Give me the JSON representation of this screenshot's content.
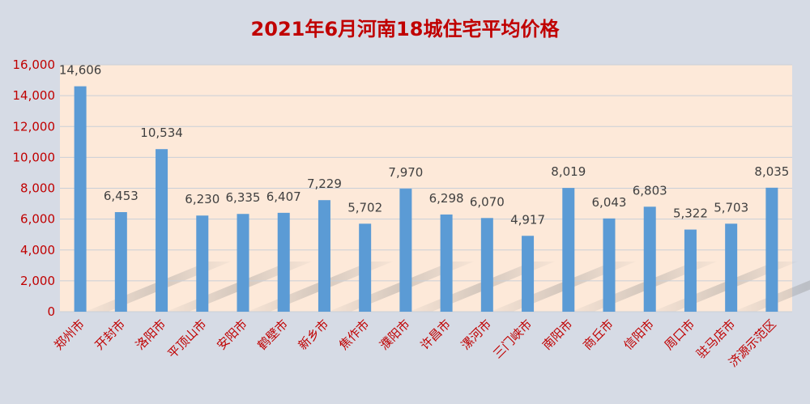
{
  "chart_data": {
    "type": "bar",
    "title": "2021年6月河南18城住宅平均价格",
    "categories": [
      "郑州市",
      "开封市",
      "洛阳市",
      "平顶山市",
      "安阳市",
      "鹤壁市",
      "新乡市",
      "焦作市",
      "濮阳市",
      "许昌市",
      "漯河市",
      "三门峡市",
      "南阳市",
      "商丘市",
      "信阳市",
      "周口市",
      "驻马店市",
      "济源示范区"
    ],
    "values": [
      14606,
      6453,
      10534,
      6230,
      6335,
      6407,
      7229,
      5702,
      7970,
      6298,
      6070,
      4917,
      8019,
      6043,
      6803,
      5322,
      5703,
      8035
    ],
    "value_labels": [
      "14,606",
      "6,453",
      "10,534",
      "6,230",
      "6,335",
      "6,407",
      "7,229",
      "5,702",
      "7,970",
      "6,298",
      "6,070",
      "4,917",
      "8,019",
      "6,043",
      "6,803",
      "5,322",
      "5,703",
      "8,035"
    ],
    "yticks": [
      "0",
      "2,000",
      "4,000",
      "6,000",
      "8,000",
      "10,000",
      "12,000",
      "14,000",
      "16,000"
    ],
    "ylim": [
      0,
      16000
    ],
    "xlabel": "",
    "ylabel": "",
    "grid": true,
    "legend": "none"
  },
  "colors": {
    "background": "#d6dbe5",
    "plot_area": "#fde9d9",
    "bar": "#5b9bd5",
    "title": "#c00000",
    "axis_labels": "#c00000",
    "value_labels": "#404040",
    "gridline": "#c9cfd8"
  }
}
